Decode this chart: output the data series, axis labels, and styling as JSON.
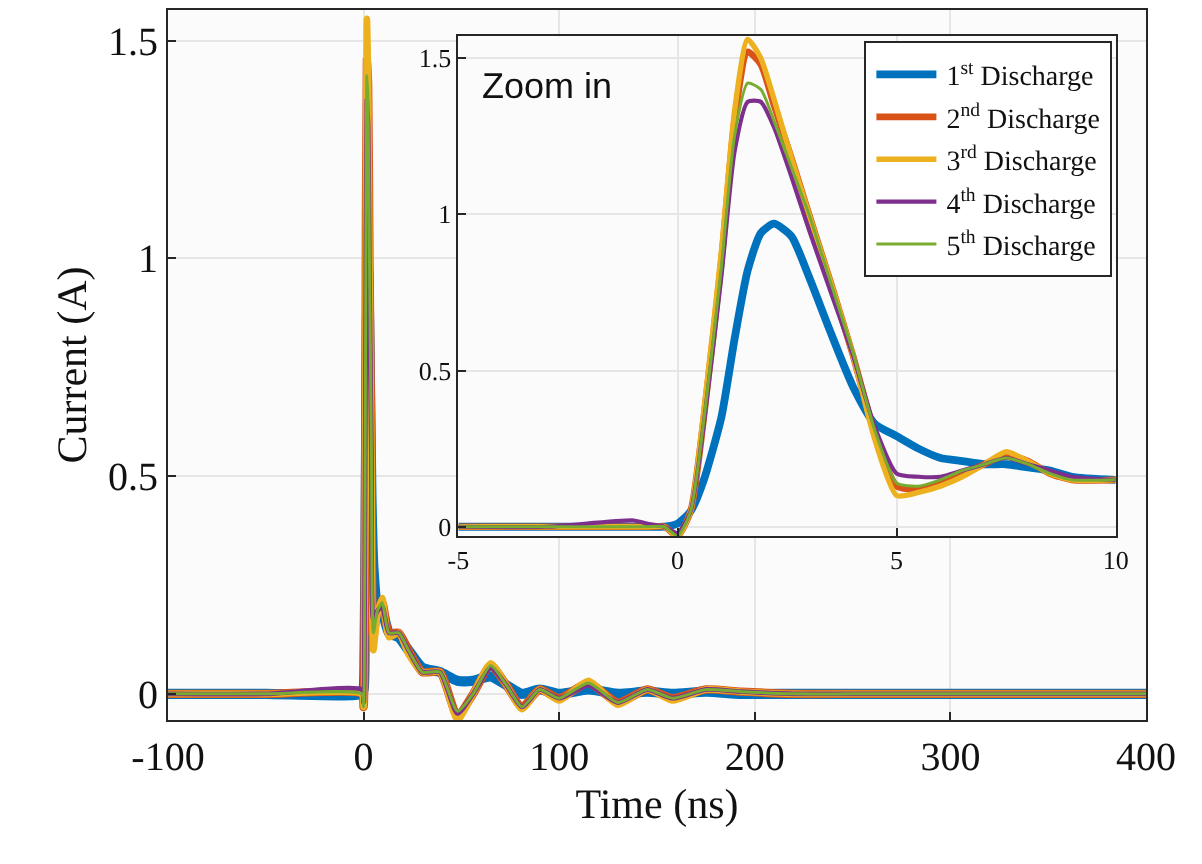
{
  "chart_data": [
    {
      "type": "line",
      "xlabel": "Time (ns)",
      "ylabel": "Current (A)",
      "xlim": [
        -100,
        400
      ],
      "ylim": [
        -0.06,
        1.57
      ],
      "xticks": [
        -100,
        0,
        100,
        200,
        300,
        400
      ],
      "yticks": [
        0,
        0.5,
        1,
        1.5
      ],
      "grid": true,
      "legend": false,
      "x": [
        -100,
        -50,
        -1,
        0,
        0.5,
        1,
        1.7,
        2.3,
        3,
        4,
        5,
        7,
        9.5,
        13,
        18,
        23,
        30,
        39,
        48,
        56,
        65,
        73,
        81,
        90,
        100,
        115,
        130,
        145,
        158,
        175,
        193,
        220,
        250,
        300,
        350,
        400
      ],
      "series": [
        {
          "color": "#0072bd",
          "values": [
            0,
            0,
            0,
            0.01,
            0.1,
            0.35,
            0.85,
            0.97,
            0.8,
            0.45,
            0.29,
            0.2,
            0.19,
            0.14,
            0.13,
            0.1,
            0.06,
            0.05,
            0.03,
            0.03,
            0.04,
            0.02,
            0.0,
            0.01,
            0.0,
            0.01,
            0.0,
            0.005,
            0.0,
            0.005,
            0.0,
            0.0,
            0.0,
            0.0,
            0.0,
            0.0
          ]
        },
        {
          "color": "#d95319",
          "values": [
            0,
            0,
            0,
            -0.03,
            0.2,
            0.8,
            1.45,
            1.4,
            1.0,
            0.55,
            0.13,
            0.19,
            0.21,
            0.14,
            0.14,
            0.1,
            0.05,
            0.05,
            -0.05,
            0.0,
            0.065,
            0.02,
            -0.03,
            0.01,
            -0.01,
            0.025,
            -0.02,
            0.01,
            -0.01,
            0.01,
            0.005,
            0.0,
            0.0,
            0.0,
            0.0,
            0.0
          ]
        },
        {
          "color": "#edb120",
          "values": [
            0,
            0,
            0,
            -0.03,
            0.2,
            0.8,
            1.55,
            1.42,
            1.0,
            0.55,
            0.1,
            0.18,
            0.22,
            0.13,
            0.14,
            0.09,
            0.05,
            0.05,
            -0.06,
            0.0,
            0.07,
            0.02,
            -0.035,
            0.01,
            -0.015,
            0.03,
            -0.025,
            0.01,
            -0.015,
            0.01,
            0.005,
            0.0,
            0.0,
            0.0,
            0.0,
            0.0
          ]
        },
        {
          "color": "#7e2f8e",
          "values": [
            0,
            0,
            0.01,
            -0.02,
            0.2,
            0.78,
            1.36,
            1.3,
            0.95,
            0.55,
            0.17,
            0.19,
            0.2,
            0.14,
            0.14,
            0.1,
            0.05,
            0.05,
            -0.045,
            0.0,
            0.06,
            0.02,
            -0.03,
            0.01,
            -0.01,
            0.02,
            -0.02,
            0.01,
            -0.01,
            0.01,
            0.005,
            0.0,
            0.0,
            0.0,
            0.0,
            0.0
          ]
        },
        {
          "color": "#77ac30",
          "values": [
            0,
            0,
            0,
            -0.03,
            0.2,
            0.8,
            1.42,
            1.35,
            1.0,
            0.55,
            0.14,
            0.19,
            0.21,
            0.14,
            0.14,
            0.1,
            0.05,
            0.05,
            -0.04,
            0.0,
            0.065,
            0.02,
            -0.03,
            0.01,
            -0.01,
            0.025,
            -0.02,
            0.01,
            -0.01,
            0.01,
            0.005,
            0.0,
            0.0,
            0.0,
            0.0,
            0.0
          ]
        }
      ]
    },
    {
      "type": "line",
      "xlim": [
        -5,
        10
      ],
      "ylim": [
        -0.03,
        1.57
      ],
      "xticks": [
        -5,
        0,
        5,
        10
      ],
      "yticks": [
        0,
        0.5,
        1,
        1.5
      ],
      "grid": true,
      "legend": "top right",
      "annotations": [
        "Zoom in"
      ],
      "x": [
        -5,
        -3,
        -1,
        -0.7,
        -0.3,
        0,
        0.3,
        0.6,
        1,
        1.3,
        1.6,
        1.9,
        2.2,
        2.6,
        3,
        3.5,
        4,
        4.5,
        5,
        5.5,
        6,
        6.5,
        7,
        7.5,
        8,
        8.5,
        9,
        10
      ],
      "series": [
        {
          "name": "1$^{st}$ Discharge",
          "color": "#0072bd",
          "values": [
            0,
            0,
            0,
            0,
            0,
            0.01,
            0.05,
            0.15,
            0.35,
            0.6,
            0.82,
            0.94,
            0.97,
            0.93,
            0.8,
            0.62,
            0.45,
            0.33,
            0.29,
            0.25,
            0.22,
            0.21,
            0.2,
            0.2,
            0.19,
            0.18,
            0.16,
            0.15
          ]
        },
        {
          "name": "2$^{nd}$ Discharge",
          "color": "#d95319",
          "values": [
            0,
            0,
            0,
            0,
            0,
            -0.03,
            0.05,
            0.35,
            0.85,
            1.3,
            1.52,
            1.48,
            1.35,
            1.18,
            1.0,
            0.78,
            0.55,
            0.3,
            0.13,
            0.12,
            0.14,
            0.17,
            0.2,
            0.23,
            0.21,
            0.17,
            0.15,
            0.15
          ]
        },
        {
          "name": "3$^{rd}$ Discharge",
          "color": "#edb120",
          "values": [
            0,
            0,
            0,
            0,
            0,
            -0.03,
            0.05,
            0.37,
            0.88,
            1.33,
            1.56,
            1.5,
            1.37,
            1.18,
            1.0,
            0.78,
            0.55,
            0.28,
            0.1,
            0.11,
            0.13,
            0.16,
            0.2,
            0.24,
            0.21,
            0.17,
            0.15,
            0.15
          ]
        },
        {
          "name": "4$^{th}$ Discharge",
          "color": "#7e2f8e",
          "values": [
            0,
            0,
            0.02,
            0.01,
            0,
            -0.02,
            0.05,
            0.33,
            0.8,
            1.2,
            1.36,
            1.36,
            1.28,
            1.12,
            0.95,
            0.75,
            0.55,
            0.32,
            0.17,
            0.16,
            0.16,
            0.18,
            0.2,
            0.22,
            0.2,
            0.18,
            0.16,
            0.15
          ]
        },
        {
          "name": "5$^{th}$ Discharge",
          "color": "#77ac30",
          "values": [
            0,
            0,
            0,
            0,
            0,
            -0.03,
            0.05,
            0.34,
            0.83,
            1.25,
            1.42,
            1.4,
            1.3,
            1.15,
            1.0,
            0.78,
            0.56,
            0.31,
            0.14,
            0.13,
            0.15,
            0.18,
            0.2,
            0.22,
            0.2,
            0.17,
            0.15,
            0.15
          ]
        }
      ]
    }
  ]
}
